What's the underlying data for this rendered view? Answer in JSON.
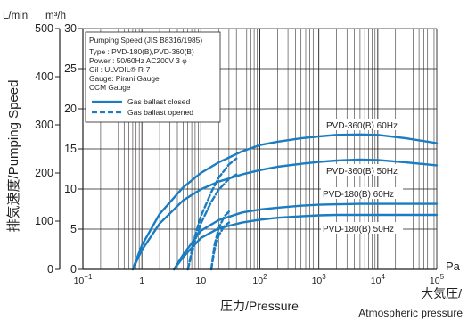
{
  "chart_data": {
    "type": "line",
    "title": "",
    "xlabel": "圧力/Pressure",
    "ylabel": "排気速度/Pumping Speed",
    "x_scale": "log",
    "x_unit": "Pa",
    "x_end_label": [
      "大気圧/",
      "Atmospheric pressure"
    ],
    "xlim": [
      0.1,
      100000
    ],
    "ylim_left": [
      0,
      500
    ],
    "ylim_right": [
      0,
      30
    ],
    "y_left_unit": "L/min",
    "y_right_unit": "m³/h",
    "grid": true,
    "x_ticks": [
      {
        "value": 0.1,
        "base": "10",
        "exp": "−1"
      },
      {
        "value": 1,
        "base": "1",
        "exp": ""
      },
      {
        "value": 10,
        "base": "10",
        "exp": ""
      },
      {
        "value": 100,
        "base": "10",
        "exp": "2"
      },
      {
        "value": 1000,
        "base": "10",
        "exp": "3"
      },
      {
        "value": 10000,
        "base": "10",
        "exp": "4"
      },
      {
        "value": 100000,
        "base": "10",
        "exp": "5"
      }
    ],
    "y_ticks_left": [
      0,
      100,
      200,
      300,
      400,
      500
    ],
    "y_ticks_right": [
      0,
      5,
      10,
      15,
      20,
      25,
      30
    ],
    "legend": {
      "position": "top-left",
      "lines": [
        "Pumping Speed (JIS B8316/1985)",
        "Type   : PVD-180(B),PVD-360(B)",
        "Power : 50/60Hz AC200V  3 φ",
        "Oil     : ULVOIL® R-7",
        "Gauge: Pirani  Gauge",
        "            CCM  Gauge"
      ],
      "entries": [
        "Gas  ballast  closed",
        "Gas ballast  opened"
      ]
    },
    "colors": {
      "curve": "#1a7cc1",
      "grid": "#231f20",
      "text": "#231f20"
    },
    "series": [
      {
        "name": "PVD-360(B) 60Hz",
        "style": "solid",
        "x": [
          0.7,
          1,
          2,
          5,
          10,
          20,
          50,
          100,
          200,
          500,
          1000,
          2000,
          5000,
          10000,
          30000,
          100000
        ],
        "y": [
          0,
          50,
          115,
          170,
          200,
          222,
          245,
          258,
          265,
          272,
          276,
          279,
          280,
          279,
          272,
          262
        ]
      },
      {
        "name": "PVD-360(B) 50Hz",
        "style": "solid",
        "x": [
          0.7,
          1,
          2,
          5,
          10,
          20,
          50,
          100,
          200,
          500,
          1000,
          2000,
          5000,
          10000,
          30000,
          100000
        ],
        "y": [
          0,
          40,
          95,
          143,
          166,
          182,
          197,
          206,
          213,
          219,
          223,
          226,
          228,
          227,
          222,
          216
        ]
      },
      {
        "name": "PVD-180(B) 60Hz",
        "style": "solid",
        "x": [
          3.5,
          5,
          10,
          20,
          50,
          100,
          200,
          500,
          1000,
          2000,
          5000,
          10000,
          30000,
          100000
        ],
        "y": [
          0,
          30,
          80,
          102,
          118,
          124,
          128,
          132,
          134,
          135,
          136,
          136,
          136,
          136
        ]
      },
      {
        "name": "PVD-180(B) 50Hz",
        "style": "solid",
        "x": [
          3.5,
          5,
          10,
          20,
          50,
          100,
          200,
          500,
          1000,
          2000,
          5000,
          10000,
          30000,
          100000
        ],
        "y": [
          0,
          25,
          65,
          85,
          97,
          103,
          107,
          110,
          112,
          113,
          113,
          113,
          113,
          113
        ]
      },
      {
        "name": "",
        "style": "dashed",
        "x": [
          6,
          8,
          10,
          15,
          20,
          30,
          40
        ],
        "y": [
          0,
          70,
          110,
          160,
          190,
          218,
          230
        ]
      },
      {
        "name": "",
        "style": "dashed",
        "x": [
          6,
          8,
          10,
          15,
          20,
          30,
          40
        ],
        "y": [
          0,
          60,
          95,
          140,
          165,
          188,
          197
        ]
      },
      {
        "name": "",
        "style": "dashed",
        "x": [
          15,
          17,
          20,
          25,
          30
        ],
        "y": [
          0,
          50,
          85,
          110,
          120
        ]
      },
      {
        "name": "",
        "style": "dashed",
        "x": [
          15,
          17,
          20,
          25,
          30
        ],
        "y": [
          0,
          40,
          70,
          90,
          97
        ]
      }
    ],
    "annotations": [
      {
        "text": "PVD-360(B) 60Hz",
        "series": 0
      },
      {
        "text": "PVD-360(B) 50Hz",
        "series": 1
      },
      {
        "text": "PVD-180(B) 60Hz",
        "series": 2
      },
      {
        "text": "PVD-180(B) 50Hz",
        "series": 3
      }
    ]
  }
}
